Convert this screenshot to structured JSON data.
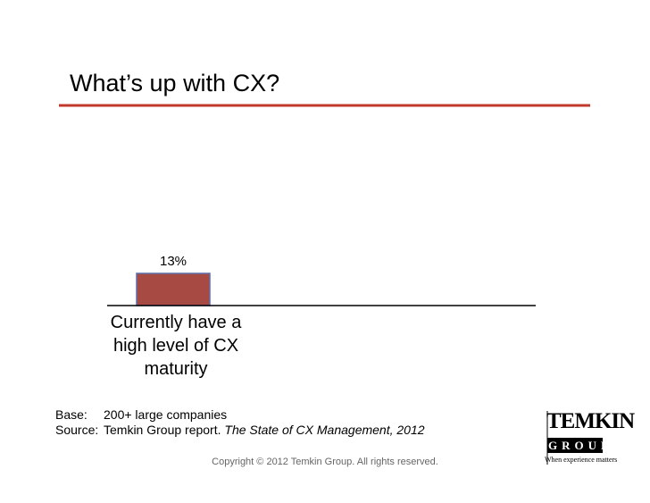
{
  "chart_data": {
    "type": "bar",
    "title": "What’s up with CX?",
    "categories": [
      "Currently have a high level of CX maturity"
    ],
    "values": [
      13
    ],
    "value_labels": [
      "13%"
    ],
    "color": "#a84a44"
  },
  "footer": {
    "base_label": "Base:",
    "base": "200+ large companies",
    "source_label": "Source:",
    "source": "Temkin Group report.",
    "source_title": "The State of CX Management, 2012",
    "copyright": "Copyright © 2012 Temkin Group. All rights reserved."
  },
  "logo": {
    "name": "TEMKIN",
    "group": "GROUP",
    "tagline": "When experience matters"
  }
}
